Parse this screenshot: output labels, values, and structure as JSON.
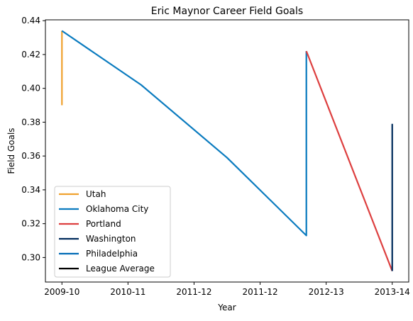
{
  "chart_data": {
    "type": "line",
    "title": "Eric Maynor Career Field Goals",
    "xlabel": "Year",
    "ylabel": "Field Goals",
    "categories": [
      "2009-10",
      "2010-11",
      "2011-12",
      "2011-12",
      "2012-13",
      "2013-14"
    ],
    "xlim": [
      -0.25,
      5.25
    ],
    "ylim": [
      0.2855,
      0.4405
    ],
    "yticks": [
      0.3,
      0.32,
      0.34,
      0.36,
      0.38,
      0.4,
      0.42,
      0.44
    ],
    "ytick_labels": [
      "0.30",
      "0.32",
      "0.34",
      "0.36",
      "0.38",
      "0.40",
      "0.42",
      "0.44"
    ],
    "grid": false,
    "legend_position": "lower-left",
    "series": [
      {
        "name": "Utah",
        "color": "#f0a12e",
        "points": [
          [
            0,
            0.39
          ],
          [
            0,
            0.434
          ]
        ]
      },
      {
        "name": "Oklahoma City",
        "color": "#0a7bbf",
        "points": [
          [
            0,
            0.434
          ],
          [
            1.2,
            0.402
          ],
          [
            2.5,
            0.359
          ],
          [
            3.7,
            0.313
          ],
          [
            3.7,
            0.422
          ]
        ]
      },
      {
        "name": "Portland",
        "color": "#dd3f3f",
        "points": [
          [
            3.7,
            0.422
          ],
          [
            5,
            0.292
          ]
        ]
      },
      {
        "name": "Washington",
        "color": "#002b5c",
        "points": [
          [
            5,
            0.292
          ],
          [
            5,
            0.379
          ]
        ]
      },
      {
        "name": "Philadelphia",
        "color": "#006bb6",
        "points": [
          [
            5,
            0.292
          ],
          [
            5,
            0.292
          ]
        ]
      },
      {
        "name": "League Average",
        "color": "#000000",
        "points": []
      }
    ]
  }
}
